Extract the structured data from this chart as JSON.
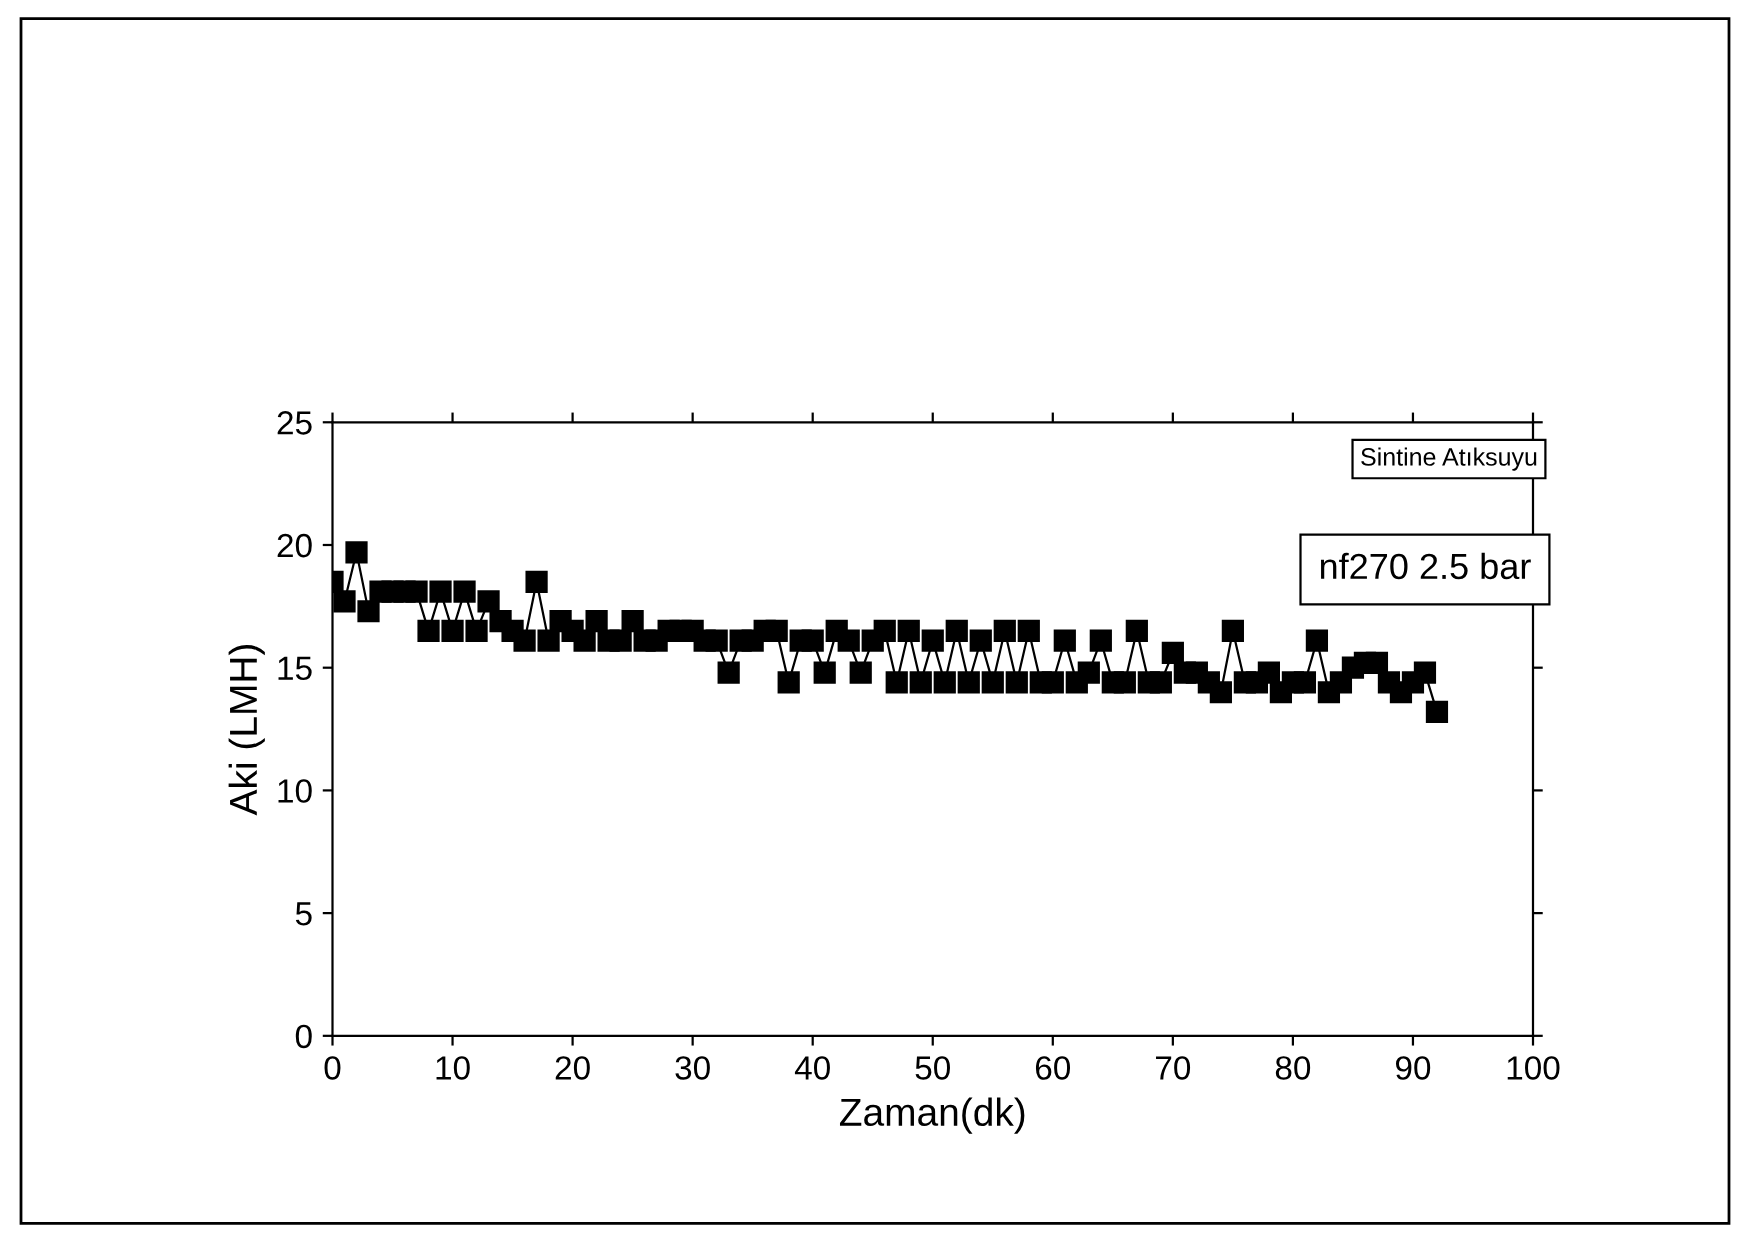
{
  "chart_data": {
    "type": "line",
    "xlabel": "Zaman(dk)",
    "ylabel": "Aki (LMH)",
    "annotations": [
      "Sintine Atıksuyu",
      "nf270 2.5 bar"
    ],
    "x": [
      0,
      1,
      2,
      3,
      4,
      5,
      6,
      7,
      8,
      9,
      10,
      11,
      12,
      13,
      14,
      15,
      16,
      17,
      18,
      19,
      20,
      21,
      22,
      23,
      24,
      25,
      26,
      27,
      28,
      29,
      30,
      31,
      32,
      33,
      34,
      35,
      36,
      37,
      38,
      39,
      40,
      41,
      42,
      43,
      44,
      45,
      46,
      47,
      48,
      49,
      50,
      51,
      52,
      53,
      54,
      55,
      56,
      57,
      58,
      59,
      60,
      61,
      62,
      63,
      64,
      65,
      66,
      67,
      68,
      69,
      70,
      71,
      72,
      73,
      74,
      75,
      76,
      77,
      78,
      79,
      80,
      81,
      82,
      83,
      84,
      85,
      86,
      87,
      88,
      89,
      90,
      91,
      92
    ],
    "series": [
      {
        "color": "#000000",
        "values": [
          18.5,
          17.7,
          19.7,
          17.3,
          18.1,
          18.1,
          18.1,
          18.1,
          16.5,
          18.1,
          16.5,
          18.1,
          16.5,
          17.7,
          16.9,
          16.5,
          16.1,
          18.5,
          16.1,
          16.9,
          16.5,
          16.1,
          16.9,
          16.1,
          16.1,
          16.9,
          16.1,
          16.1,
          16.5,
          16.5,
          16.5,
          16.1,
          16.1,
          14.8,
          16.1,
          16.1,
          16.5,
          16.5,
          14.4,
          16.1,
          16.1,
          14.8,
          16.5,
          16.1,
          14.8,
          16.1,
          16.5,
          14.4,
          16.5,
          14.4,
          16.1,
          14.4,
          16.5,
          14.4,
          16.1,
          14.4,
          16.5,
          14.4,
          16.5,
          14.4,
          14.4,
          16.1,
          14.4,
          14.8,
          16.1,
          14.4,
          14.4,
          16.5,
          14.4,
          14.4,
          15.6,
          14.8,
          14.8,
          14.4,
          14.0,
          16.5,
          14.4,
          14.4,
          14.8,
          14.0,
          14.4,
          14.4,
          16.1,
          14.0,
          14.4,
          15.0,
          15.2,
          15.2,
          14.4,
          14.0,
          14.4,
          14.8,
          13.2
        ]
      }
    ],
    "marker": "square",
    "line_style": "solid",
    "xlim": [
      0,
      100
    ],
    "xticks": [
      0,
      10,
      20,
      30,
      40,
      50,
      60,
      70,
      80,
      90,
      100
    ],
    "ylim": [
      0,
      25
    ],
    "yticks": [
      0,
      5,
      10,
      15,
      20,
      25
    ],
    "grid": false,
    "legend": false
  }
}
